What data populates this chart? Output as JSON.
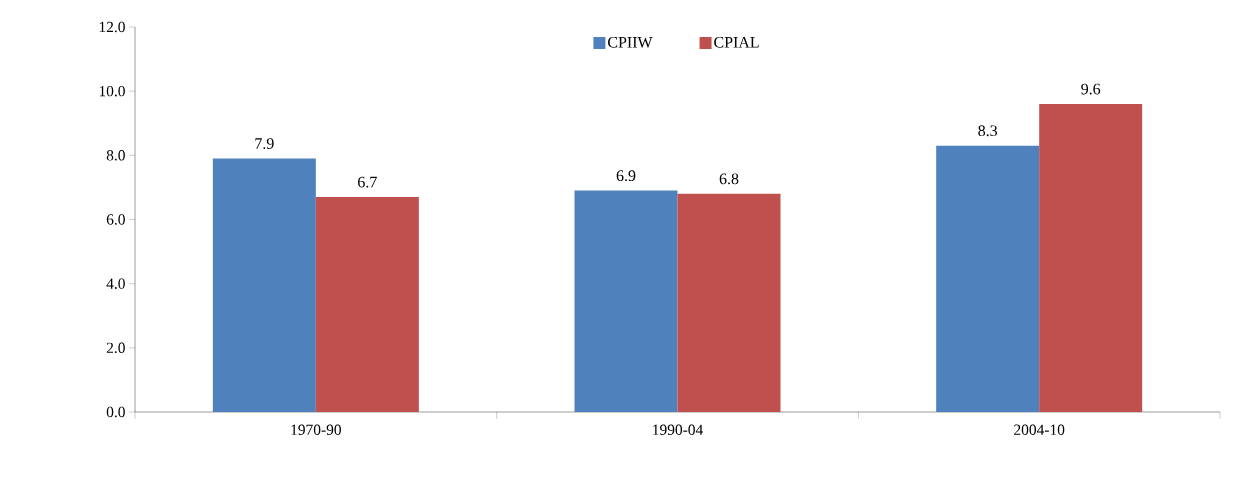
{
  "chart_data": {
    "type": "bar",
    "categories": [
      "1970-90",
      "1990-04",
      "2004-10"
    ],
    "series": [
      {
        "name": "CPIIW",
        "color": "#4f81bd",
        "values": [
          7.9,
          6.9,
          8.3
        ]
      },
      {
        "name": "CPIAL",
        "color": "#c0504d",
        "values": [
          6.7,
          6.8,
          9.6
        ]
      }
    ],
    "ylim": [
      0,
      12
    ],
    "yticks": [
      {
        "value": 0,
        "label": "0.0"
      },
      {
        "value": 2,
        "label": "2.0"
      },
      {
        "value": 4,
        "label": "4.0"
      },
      {
        "value": 6,
        "label": "6.0"
      },
      {
        "value": 8,
        "label": "8.0"
      },
      {
        "value": 10,
        "label": "10.0"
      },
      {
        "value": 12,
        "label": "12.0"
      }
    ],
    "data_labels": true,
    "legend": "top",
    "grid": false
  }
}
